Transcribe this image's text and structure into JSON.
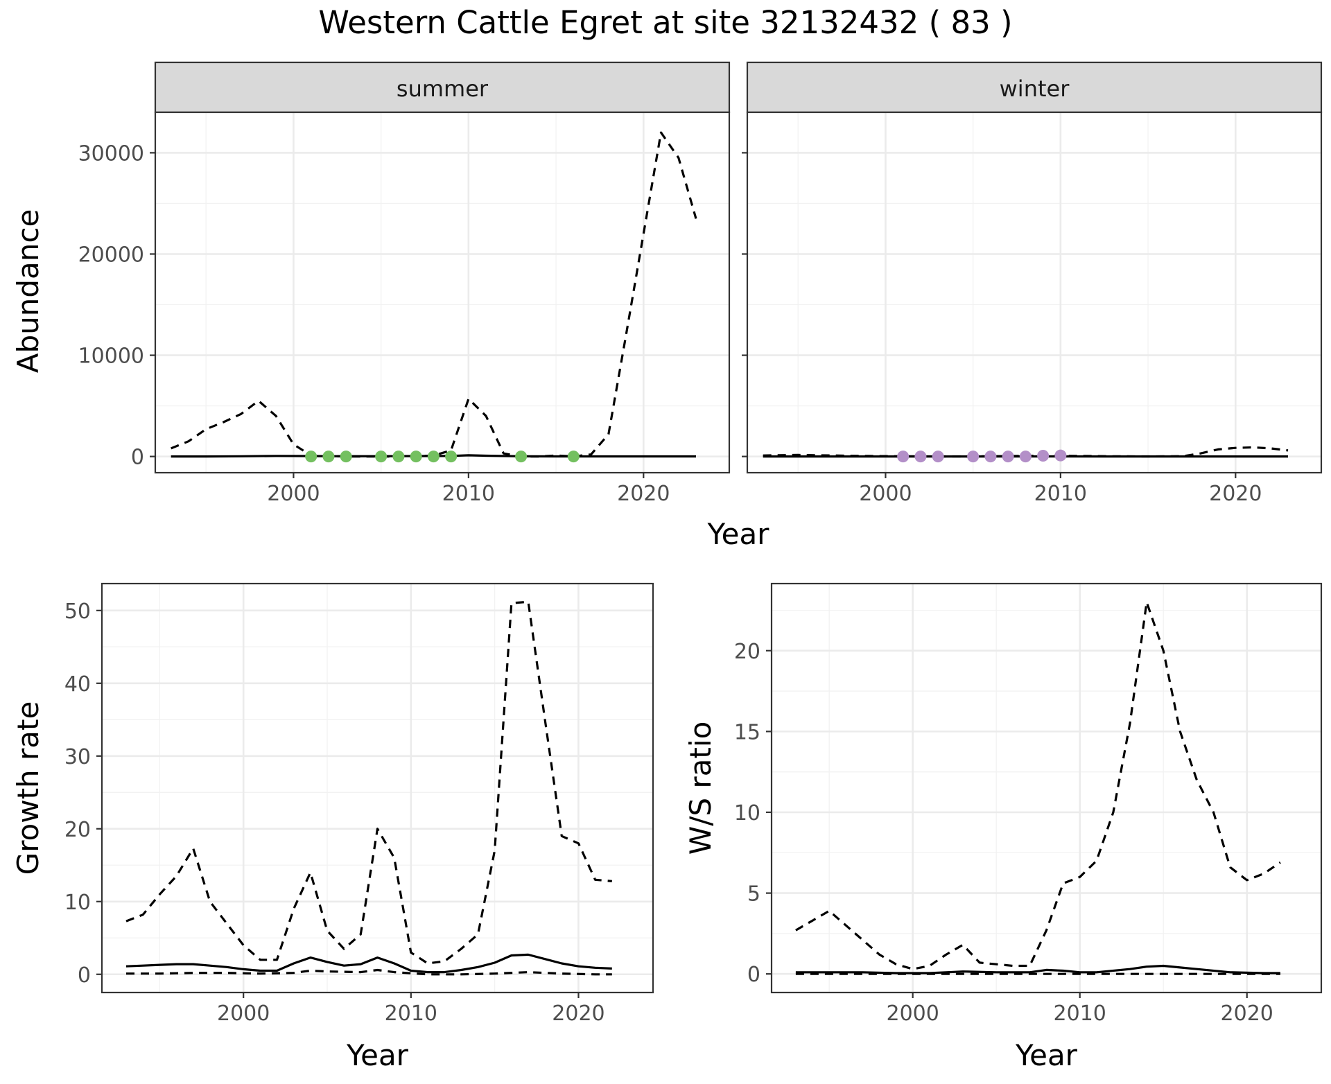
{
  "title": "Western Cattle Egret at site 32132432 ( 83 )",
  "colors": {
    "summer_points": "#74c060",
    "winter_points": "#b38fc8",
    "lines": "#000000",
    "strip": "#d9d9d9",
    "grid": "#ebebeb"
  },
  "chart_data": [
    {
      "type": "line",
      "facet": "summer",
      "xlabel": "Year",
      "ylabel": "Abundance",
      "xlim": [
        1992.1,
        2024.9
      ],
      "ylim": [
        -1600,
        34000
      ],
      "x_ticks": [
        2000,
        2010,
        2020
      ],
      "y_ticks": [
        0,
        10000,
        20000,
        30000
      ],
      "x_tick_labels": [
        "2000",
        "2010",
        "2020"
      ],
      "y_tick_labels": [
        "0",
        "10000",
        "20000",
        "30000"
      ],
      "grid": true,
      "series": [
        {
          "style": "solid",
          "x": [
            1993,
            1995,
            1997,
            1999,
            2001,
            2003,
            2005,
            2007,
            2009,
            2010,
            2011,
            2013,
            2015,
            2017,
            2019,
            2021,
            2023
          ],
          "y": [
            0,
            0,
            20,
            60,
            40,
            20,
            30,
            40,
            60,
            120,
            80,
            20,
            10,
            10,
            10,
            10,
            10
          ]
        },
        {
          "style": "dashed",
          "x": [
            1993,
            1994,
            1995,
            1996,
            1997,
            1998,
            1999,
            2000,
            2001,
            2002,
            2003,
            2004,
            2005,
            2006,
            2007,
            2008,
            2009,
            2010,
            2011,
            2012,
            2013,
            2014,
            2015,
            2016,
            2017,
            2018,
            2019,
            2020,
            2021,
            2022,
            2023
          ],
          "y": [
            800,
            1500,
            2700,
            3400,
            4200,
            5500,
            4000,
            1200,
            100,
            50,
            0,
            0,
            0,
            0,
            0,
            100,
            600,
            5700,
            4000,
            300,
            0,
            0,
            100,
            0,
            200,
            2200,
            12000,
            22000,
            32000,
            29500,
            23500
          ]
        },
        {
          "style": "points",
          "x": [
            2001,
            2002,
            2003,
            2005,
            2006,
            2007,
            2008,
            2009,
            2013,
            2016
          ],
          "y": [
            0,
            0,
            0,
            0,
            0,
            0,
            0,
            0,
            0,
            0
          ]
        }
      ]
    },
    {
      "type": "line",
      "facet": "winter",
      "xlabel": "Year",
      "ylabel": "Abundance",
      "xlim": [
        1992.1,
        2024.9
      ],
      "ylim": [
        -1600,
        34000
      ],
      "x_ticks": [
        2000,
        2010,
        2020
      ],
      "y_ticks": [
        0,
        10000,
        20000,
        30000
      ],
      "x_tick_labels": [
        "2000",
        "2010",
        "2020"
      ],
      "grid": true,
      "series": [
        {
          "style": "solid",
          "x": [
            1993,
            1997,
            2001,
            2005,
            2009,
            2013,
            2017,
            2021,
            2023
          ],
          "y": [
            0,
            0,
            0,
            0,
            10,
            0,
            0,
            0,
            0
          ]
        },
        {
          "style": "dashed",
          "x": [
            1993,
            1995,
            1997,
            1999,
            2001,
            2003,
            2005,
            2007,
            2009,
            2011,
            2013,
            2015,
            2017,
            2018,
            2019,
            2020,
            2021,
            2022,
            2023
          ],
          "y": [
            100,
            150,
            100,
            50,
            20,
            10,
            10,
            40,
            80,
            60,
            20,
            10,
            30,
            300,
            700,
            850,
            900,
            800,
            600
          ]
        },
        {
          "style": "points",
          "x": [
            2001,
            2002,
            2003,
            2005,
            2006,
            2007,
            2008,
            2009,
            2010
          ],
          "y": [
            0,
            0,
            0,
            0,
            0,
            0,
            0,
            80,
            100
          ]
        }
      ]
    },
    {
      "type": "line",
      "xlabel": "Year",
      "ylabel": "Growth rate",
      "xlim": [
        1991.55,
        2024.45
      ],
      "ylim": [
        -2.5,
        53.7
      ],
      "x_ticks": [
        2000,
        2010,
        2020
      ],
      "y_ticks": [
        0,
        10,
        20,
        30,
        40,
        50
      ],
      "x_tick_labels": [
        "2000",
        "2010",
        "2020"
      ],
      "y_tick_labels": [
        "0",
        "10",
        "20",
        "30",
        "40",
        "50"
      ],
      "grid": true,
      "series": [
        {
          "style": "solid",
          "x": [
            1993,
            1994,
            1995,
            1996,
            1997,
            1998,
            1999,
            2000,
            2001,
            2002,
            2003,
            2004,
            2005,
            2006,
            2007,
            2008,
            2009,
            2010,
            2011,
            2012,
            2013,
            2014,
            2015,
            2016,
            2017,
            2018,
            2019,
            2020,
            2021,
            2022
          ],
          "y": [
            1.1,
            1.2,
            1.3,
            1.4,
            1.4,
            1.2,
            1.0,
            0.7,
            0.5,
            0.5,
            1.5,
            2.3,
            1.7,
            1.2,
            1.4,
            2.3,
            1.5,
            0.5,
            0.3,
            0.3,
            0.6,
            1.0,
            1.6,
            2.6,
            2.7,
            2.1,
            1.5,
            1.1,
            0.9,
            0.8
          ]
        },
        {
          "style": "dashed",
          "x": [
            1993,
            1994,
            1995,
            1996,
            1997,
            1998,
            1999,
            2000,
            2001,
            2002,
            2003,
            2004,
            2005,
            2006,
            2007,
            2008,
            2009,
            2010,
            2011,
            2012,
            2013,
            2014,
            2015,
            2016,
            2017,
            2018,
            2019,
            2020,
            2021,
            2022
          ],
          "y": [
            7.3,
            8.2,
            11,
            13.5,
            17.3,
            10,
            7,
            4,
            2,
            2,
            9,
            14,
            6,
            3.5,
            5.5,
            20,
            16,
            3,
            1.5,
            1.8,
            3.5,
            5.5,
            17,
            51,
            51.2,
            35,
            19,
            18,
            13,
            12.8
          ]
        },
        {
          "style": "dashed",
          "x": [
            1993,
            1995,
            1997,
            1999,
            2001,
            2003,
            2004,
            2005,
            2007,
            2008,
            2009,
            2011,
            2013,
            2015,
            2017,
            2019,
            2021,
            2022
          ],
          "y": [
            0.1,
            0.1,
            0.2,
            0.2,
            0.1,
            0.2,
            0.5,
            0.4,
            0.3,
            0.6,
            0.3,
            0.0,
            0.0,
            0.1,
            0.3,
            0.1,
            0.0,
            0.0
          ]
        }
      ]
    },
    {
      "type": "line",
      "xlabel": "Year",
      "ylabel": "W/S ratio",
      "xlim": [
        1991.55,
        2024.45
      ],
      "ylim": [
        -1.15,
        24.15
      ],
      "x_ticks": [
        2000,
        2010,
        2020
      ],
      "y_ticks": [
        0,
        5,
        10,
        15,
        20
      ],
      "x_tick_labels": [
        "2000",
        "2010",
        "2020"
      ],
      "y_tick_labels": [
        "0",
        "5",
        "10",
        "15",
        "20"
      ],
      "grid": true,
      "series": [
        {
          "style": "solid",
          "x": [
            1993,
            1995,
            1997,
            1999,
            2001,
            2003,
            2005,
            2007,
            2008,
            2009,
            2010,
            2011,
            2013,
            2014,
            2015,
            2016,
            2017,
            2019,
            2021,
            2022
          ],
          "y": [
            0.1,
            0.1,
            0.1,
            0.05,
            0.05,
            0.15,
            0.1,
            0.1,
            0.25,
            0.2,
            0.1,
            0.1,
            0.3,
            0.45,
            0.5,
            0.4,
            0.3,
            0.1,
            0.05,
            0.05
          ]
        },
        {
          "style": "dashed",
          "x": [
            1993,
            1994,
            1995,
            1996,
            1997,
            1998,
            1999,
            2000,
            2001,
            2002,
            2003,
            2004,
            2005,
            2006,
            2007,
            2008,
            2009,
            2010,
            2011,
            2012,
            2013,
            2014,
            2015,
            2016,
            2017,
            2018,
            2019,
            2020,
            2021,
            2022
          ],
          "y": [
            2.7,
            3.3,
            3.9,
            3.0,
            2.1,
            1.2,
            0.6,
            0.3,
            0.5,
            1.2,
            1.8,
            0.7,
            0.6,
            0.5,
            0.5,
            2.7,
            5.6,
            6.0,
            7.0,
            10,
            15.5,
            23,
            20,
            15,
            12,
            10,
            6.6,
            5.8,
            6.2,
            6.9
          ]
        },
        {
          "style": "dashed",
          "x": [
            1993,
            1997,
            2001,
            2005,
            2009,
            2013,
            2017,
            2021,
            2022
          ],
          "y": [
            0.0,
            0.0,
            0.0,
            0.0,
            0.0,
            0.0,
            0.0,
            0.0,
            0.0
          ]
        }
      ]
    }
  ],
  "strips": [
    "summer",
    "winter"
  ],
  "top_xlabel": "Year"
}
